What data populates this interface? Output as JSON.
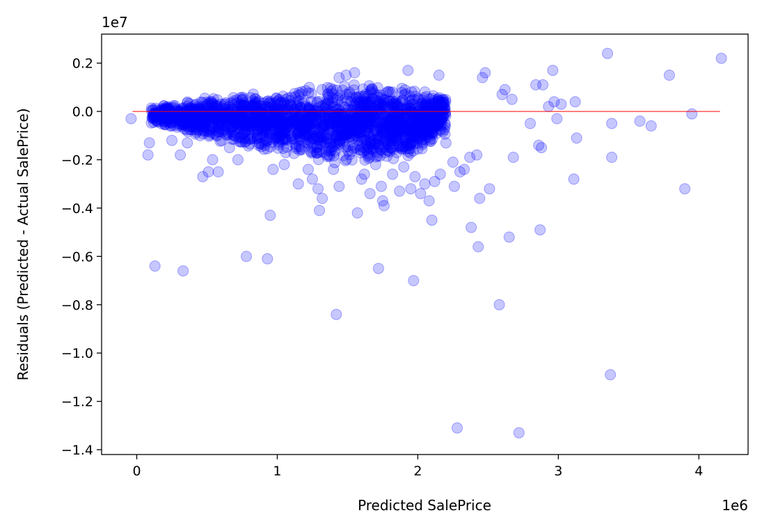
{
  "chart_data": {
    "type": "scatter",
    "xlabel": "Predicted SalePrice",
    "ylabel": "Residuals (Predicted - Actual SalePrice)",
    "x_offset_label": "1e6",
    "y_offset_label": "1e7",
    "xlim": [
      -0.25,
      4.35
    ],
    "ylim": [
      -1.42,
      0.32
    ],
    "x_ticks": [
      {
        "value": 0,
        "label": "0"
      },
      {
        "value": 1,
        "label": "1"
      },
      {
        "value": 2,
        "label": "2"
      },
      {
        "value": 3,
        "label": "3"
      },
      {
        "value": 4,
        "label": "4"
      }
    ],
    "y_ticks": [
      {
        "value": 0.2,
        "label": "0.2"
      },
      {
        "value": 0.0,
        "label": "0.0"
      },
      {
        "value": -0.2,
        "label": "−0.2"
      },
      {
        "value": -0.4,
        "label": "−0.4"
      },
      {
        "value": -0.6,
        "label": "−0.6"
      },
      {
        "value": -0.8,
        "label": "−0.8"
      },
      {
        "value": -1.0,
        "label": "−1.0"
      },
      {
        "value": -1.2,
        "label": "−1.2"
      },
      {
        "value": -1.4,
        "label": "−1.4"
      }
    ],
    "grid": false,
    "marker_color": "#0000ff",
    "marker_alpha": 0.22,
    "reference_line": {
      "y": 0,
      "x_start": -0.03,
      "x_end": 4.15,
      "color": "#ff0000"
    },
    "points": [
      [
        -0.04,
        -0.03
      ],
      [
        0.08,
        -0.18
      ],
      [
        0.09,
        -0.13
      ],
      [
        0.13,
        -0.64
      ],
      [
        0.25,
        -0.12
      ],
      [
        0.33,
        -0.66
      ],
      [
        0.31,
        -0.18
      ],
      [
        0.36,
        -0.13
      ],
      [
        0.47,
        -0.27
      ],
      [
        0.51,
        -0.25
      ],
      [
        0.54,
        -0.2
      ],
      [
        0.58,
        -0.25
      ],
      [
        0.66,
        -0.15
      ],
      [
        0.72,
        -0.2
      ],
      [
        0.78,
        -0.6
      ],
      [
        0.93,
        -0.61
      ],
      [
        0.95,
        -0.43
      ],
      [
        0.97,
        -0.24
      ],
      [
        1.05,
        -0.22
      ],
      [
        1.15,
        -0.3
      ],
      [
        1.22,
        -0.24
      ],
      [
        1.25,
        -0.28
      ],
      [
        1.29,
        -0.32
      ],
      [
        1.3,
        -0.41
      ],
      [
        1.32,
        -0.36
      ],
      [
        1.4,
        -0.24
      ],
      [
        1.42,
        -0.84
      ],
      [
        1.44,
        -0.31
      ],
      [
        1.44,
        0.14
      ],
      [
        1.49,
        0.15
      ],
      [
        1.55,
        0.16
      ],
      [
        1.57,
        -0.42
      ],
      [
        1.6,
        -0.28
      ],
      [
        1.62,
        -0.26
      ],
      [
        1.66,
        -0.34
      ],
      [
        1.7,
        -0.22
      ],
      [
        1.72,
        -0.65
      ],
      [
        1.74,
        -0.31
      ],
      [
        1.75,
        -0.37
      ],
      [
        1.76,
        -0.39
      ],
      [
        1.82,
        -0.26
      ],
      [
        1.87,
        -0.33
      ],
      [
        1.9,
        -0.23
      ],
      [
        1.93,
        0.17
      ],
      [
        1.95,
        -0.32
      ],
      [
        1.97,
        -0.7
      ],
      [
        1.98,
        -0.27
      ],
      [
        2.02,
        -0.34
      ],
      [
        2.05,
        -0.3
      ],
      [
        2.08,
        -0.37
      ],
      [
        2.1,
        -0.45
      ],
      [
        2.12,
        -0.29
      ],
      [
        2.15,
        0.15
      ],
      [
        2.16,
        -0.26
      ],
      [
        2.2,
        -0.13
      ],
      [
        2.25,
        -0.21
      ],
      [
        2.26,
        -0.31
      ],
      [
        2.28,
        -1.31
      ],
      [
        2.3,
        -0.25
      ],
      [
        2.33,
        -0.24
      ],
      [
        2.37,
        -0.19
      ],
      [
        2.38,
        -0.48
      ],
      [
        2.42,
        -0.18
      ],
      [
        2.43,
        -0.56
      ],
      [
        2.44,
        -0.36
      ],
      [
        2.46,
        0.14
      ],
      [
        2.48,
        0.16
      ],
      [
        2.51,
        -0.32
      ],
      [
        2.58,
        -0.8
      ],
      [
        2.6,
        0.07
      ],
      [
        2.62,
        0.09
      ],
      [
        2.65,
        -0.52
      ],
      [
        2.67,
        0.05
      ],
      [
        2.68,
        -0.19
      ],
      [
        2.72,
        -1.33
      ],
      [
        2.8,
        -0.05
      ],
      [
        2.84,
        0.11
      ],
      [
        2.86,
        -0.14
      ],
      [
        2.87,
        -0.49
      ],
      [
        2.88,
        -0.15
      ],
      [
        2.89,
        0.11
      ],
      [
        2.93,
        0.02
      ],
      [
        2.96,
        0.17
      ],
      [
        2.97,
        0.04
      ],
      [
        2.99,
        -0.03
      ],
      [
        3.02,
        0.03
      ],
      [
        3.11,
        -0.28
      ],
      [
        3.12,
        0.04
      ],
      [
        3.13,
        -0.11
      ],
      [
        3.35,
        0.24
      ],
      [
        3.37,
        -1.09
      ],
      [
        3.38,
        -0.05
      ],
      [
        3.38,
        -0.19
      ],
      [
        3.58,
        -0.04
      ],
      [
        3.66,
        -0.06
      ],
      [
        3.79,
        0.15
      ],
      [
        3.9,
        -0.32
      ],
      [
        3.95,
        -0.01
      ],
      [
        4.16,
        0.22
      ]
    ],
    "dense_band": [
      {
        "x": 0.1,
        "ylo": -0.05,
        "yhi": 0.03
      },
      {
        "x": 0.3,
        "ylo": -0.08,
        "yhi": 0.04
      },
      {
        "x": 0.5,
        "ylo": -0.12,
        "yhi": 0.06
      },
      {
        "x": 0.7,
        "ylo": -0.14,
        "yhi": 0.07
      },
      {
        "x": 0.9,
        "ylo": -0.17,
        "yhi": 0.08
      },
      {
        "x": 1.1,
        "ylo": -0.19,
        "yhi": 0.1
      },
      {
        "x": 1.3,
        "ylo": -0.21,
        "yhi": 0.11
      },
      {
        "x": 1.5,
        "ylo": -0.22,
        "yhi": 0.12
      },
      {
        "x": 1.7,
        "ylo": -0.22,
        "yhi": 0.12
      },
      {
        "x": 1.9,
        "ylo": -0.2,
        "yhi": 0.11
      },
      {
        "x": 2.05,
        "ylo": -0.16,
        "yhi": 0.09
      },
      {
        "x": 2.2,
        "ylo": -0.1,
        "yhi": 0.07
      }
    ]
  }
}
